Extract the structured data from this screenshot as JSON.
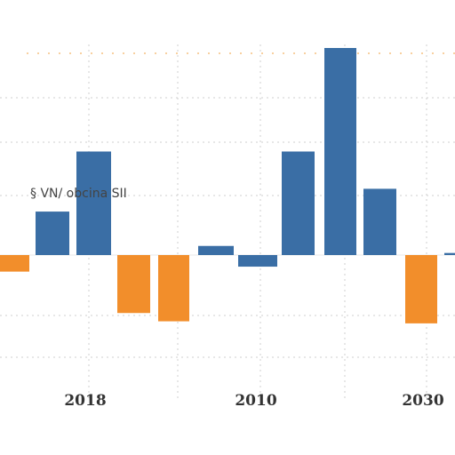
{
  "chart_data": {
    "type": "bar",
    "title": "",
    "xlabel": "",
    "ylabel": "",
    "ylim": [
      -3,
      5
    ],
    "grid": true,
    "legend": "none",
    "annotation": "§ VN/ obcina SII",
    "x_tick_labels": [
      "2018",
      "2010",
      "2030"
    ],
    "series": [
      {
        "color": "#f28e2b",
        "values": [
          -0.4,
          -1.4,
          -1.6,
          -1.65
        ]
      },
      {
        "color": "#3a6ea5",
        "values": [
          1.05,
          2.5,
          0.22,
          -0.28,
          2.5,
          5.0,
          1.6,
          0.05
        ]
      }
    ]
  }
}
